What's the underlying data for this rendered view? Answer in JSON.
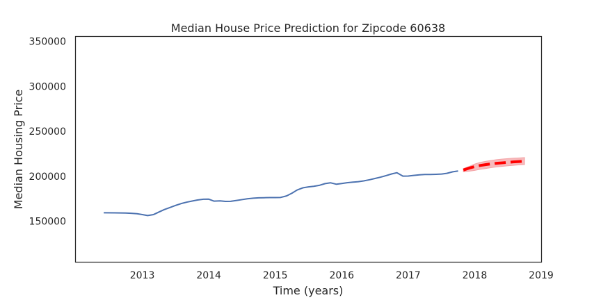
{
  "chart_data": {
    "type": "line",
    "title": "Median House Price Prediction for Zipcode 60638",
    "xlabel": "Time (years)",
    "ylabel": "Median Housing Price",
    "xlim": [
      2012.0,
      2019.0
    ],
    "ylim": [
      105000,
      355000
    ],
    "x_ticks": [
      2013,
      2014,
      2015,
      2016,
      2017,
      2018,
      2019
    ],
    "y_ticks": [
      150000,
      200000,
      250000,
      300000,
      350000
    ],
    "grid": false,
    "series": [
      {
        "style": "solid",
        "color": "#4c72b0",
        "x": [
          2012.42,
          2012.58,
          2012.75,
          2012.83,
          2012.92,
          2013.0,
          2013.08,
          2013.17,
          2013.25,
          2013.33,
          2013.42,
          2013.5,
          2013.58,
          2013.67,
          2013.75,
          2013.83,
          2013.92,
          2014.0,
          2014.08,
          2014.17,
          2014.25,
          2014.33,
          2014.42,
          2014.5,
          2014.58,
          2014.67,
          2014.75,
          2014.83,
          2014.92,
          2015.0,
          2015.08,
          2015.17,
          2015.25,
          2015.33,
          2015.42,
          2015.5,
          2015.58,
          2015.67,
          2015.75,
          2015.83,
          2015.92,
          2016.0,
          2016.08,
          2016.17,
          2016.25,
          2016.33,
          2016.42,
          2016.5,
          2016.58,
          2016.67,
          2016.75,
          2016.83,
          2016.92,
          2017.0,
          2017.08,
          2017.17,
          2017.25,
          2017.33,
          2017.42,
          2017.5,
          2017.58,
          2017.67,
          2017.75
        ],
        "values": [
          159500,
          159400,
          159200,
          158900,
          158400,
          157500,
          156400,
          157500,
          160300,
          163000,
          165400,
          167600,
          169600,
          171300,
          172500,
          173700,
          174500,
          174600,
          172400,
          172700,
          172100,
          172200,
          173200,
          174100,
          175000,
          175700,
          176100,
          176200,
          176400,
          176400,
          176500,
          178200,
          181200,
          184800,
          187300,
          188200,
          188900,
          190100,
          191900,
          192800,
          191200,
          192000,
          192900,
          193500,
          194000,
          194900,
          196200,
          197600,
          199000,
          200800,
          202600,
          204000,
          200200,
          200300,
          201000,
          201600,
          202000,
          202000,
          202200,
          202500,
          203300,
          205000,
          205900
        ]
      },
      {
        "style": "dashed",
        "color": "#ff0000",
        "x": [
          2017.83,
          2017.92,
          2018.0,
          2018.08,
          2018.17,
          2018.25,
          2018.33,
          2018.42,
          2018.5,
          2018.58,
          2018.67,
          2018.75
        ],
        "values": [
          207000,
          209200,
          210700,
          212000,
          213000,
          213800,
          214500,
          215000,
          215500,
          216000,
          216400,
          216800
        ],
        "band_lower": [
          205000,
          205700,
          206600,
          207700,
          208700,
          209600,
          210400,
          211100,
          211700,
          212200,
          212700,
          213000
        ],
        "band_upper": [
          208500,
          211000,
          213600,
          215400,
          216700,
          217700,
          218500,
          219200,
          219700,
          220200,
          220500,
          220800
        ]
      }
    ]
  },
  "colors": {
    "axes": "#262626",
    "actual_line": "#4c72b0",
    "forecast_line": "#ff0000",
    "forecast_band": "#f4a3a6"
  }
}
